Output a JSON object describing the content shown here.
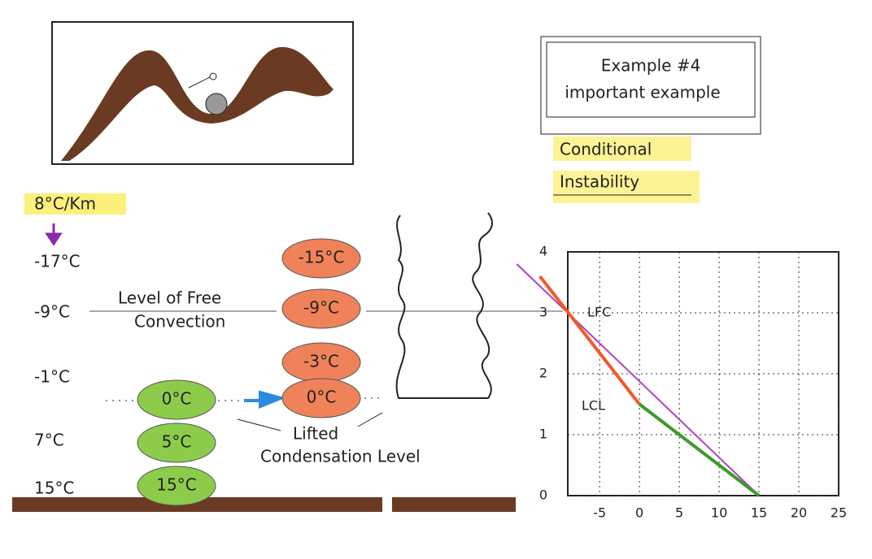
{
  "title_box": [
    "Example #4",
    "important example"
  ],
  "heading": [
    "Conditional",
    "Instability"
  ],
  "lapse_rate": "8°C/Km",
  "environment_temps": [
    "-17°C",
    "-9°C",
    "-1°C",
    "7°C",
    "15°C"
  ],
  "lfc_label": [
    "Level of Free",
    "Convection"
  ],
  "saturated_parcels": [
    "-15°C",
    "-9°C",
    "-3°C",
    "0°C"
  ],
  "dry_parcels": [
    "0°C",
    "5°C",
    "15°C"
  ],
  "lcl_label": [
    "Lifted",
    "Condensation Level"
  ],
  "graph": {
    "xlim": [
      -9,
      25
    ],
    "ylim": [
      0,
      4
    ],
    "xticks": [
      -5,
      0,
      5,
      10,
      15,
      20,
      25
    ],
    "yticks": [
      0,
      1,
      2,
      3,
      4
    ],
    "labels": [
      "LFC",
      "LCL"
    ],
    "lines": [
      {
        "color": "#b040c8",
        "x": [
          15,
          -15.4
        ],
        "y": [
          0,
          3.8
        ]
      },
      {
        "color": "#f05a28",
        "x": [
          0,
          -12.5
        ],
        "y": [
          1.5,
          3.6
        ]
      },
      {
        "color": "#3a9a2a",
        "x": [
          15,
          0
        ],
        "y": [
          0,
          1.5
        ]
      }
    ]
  }
}
